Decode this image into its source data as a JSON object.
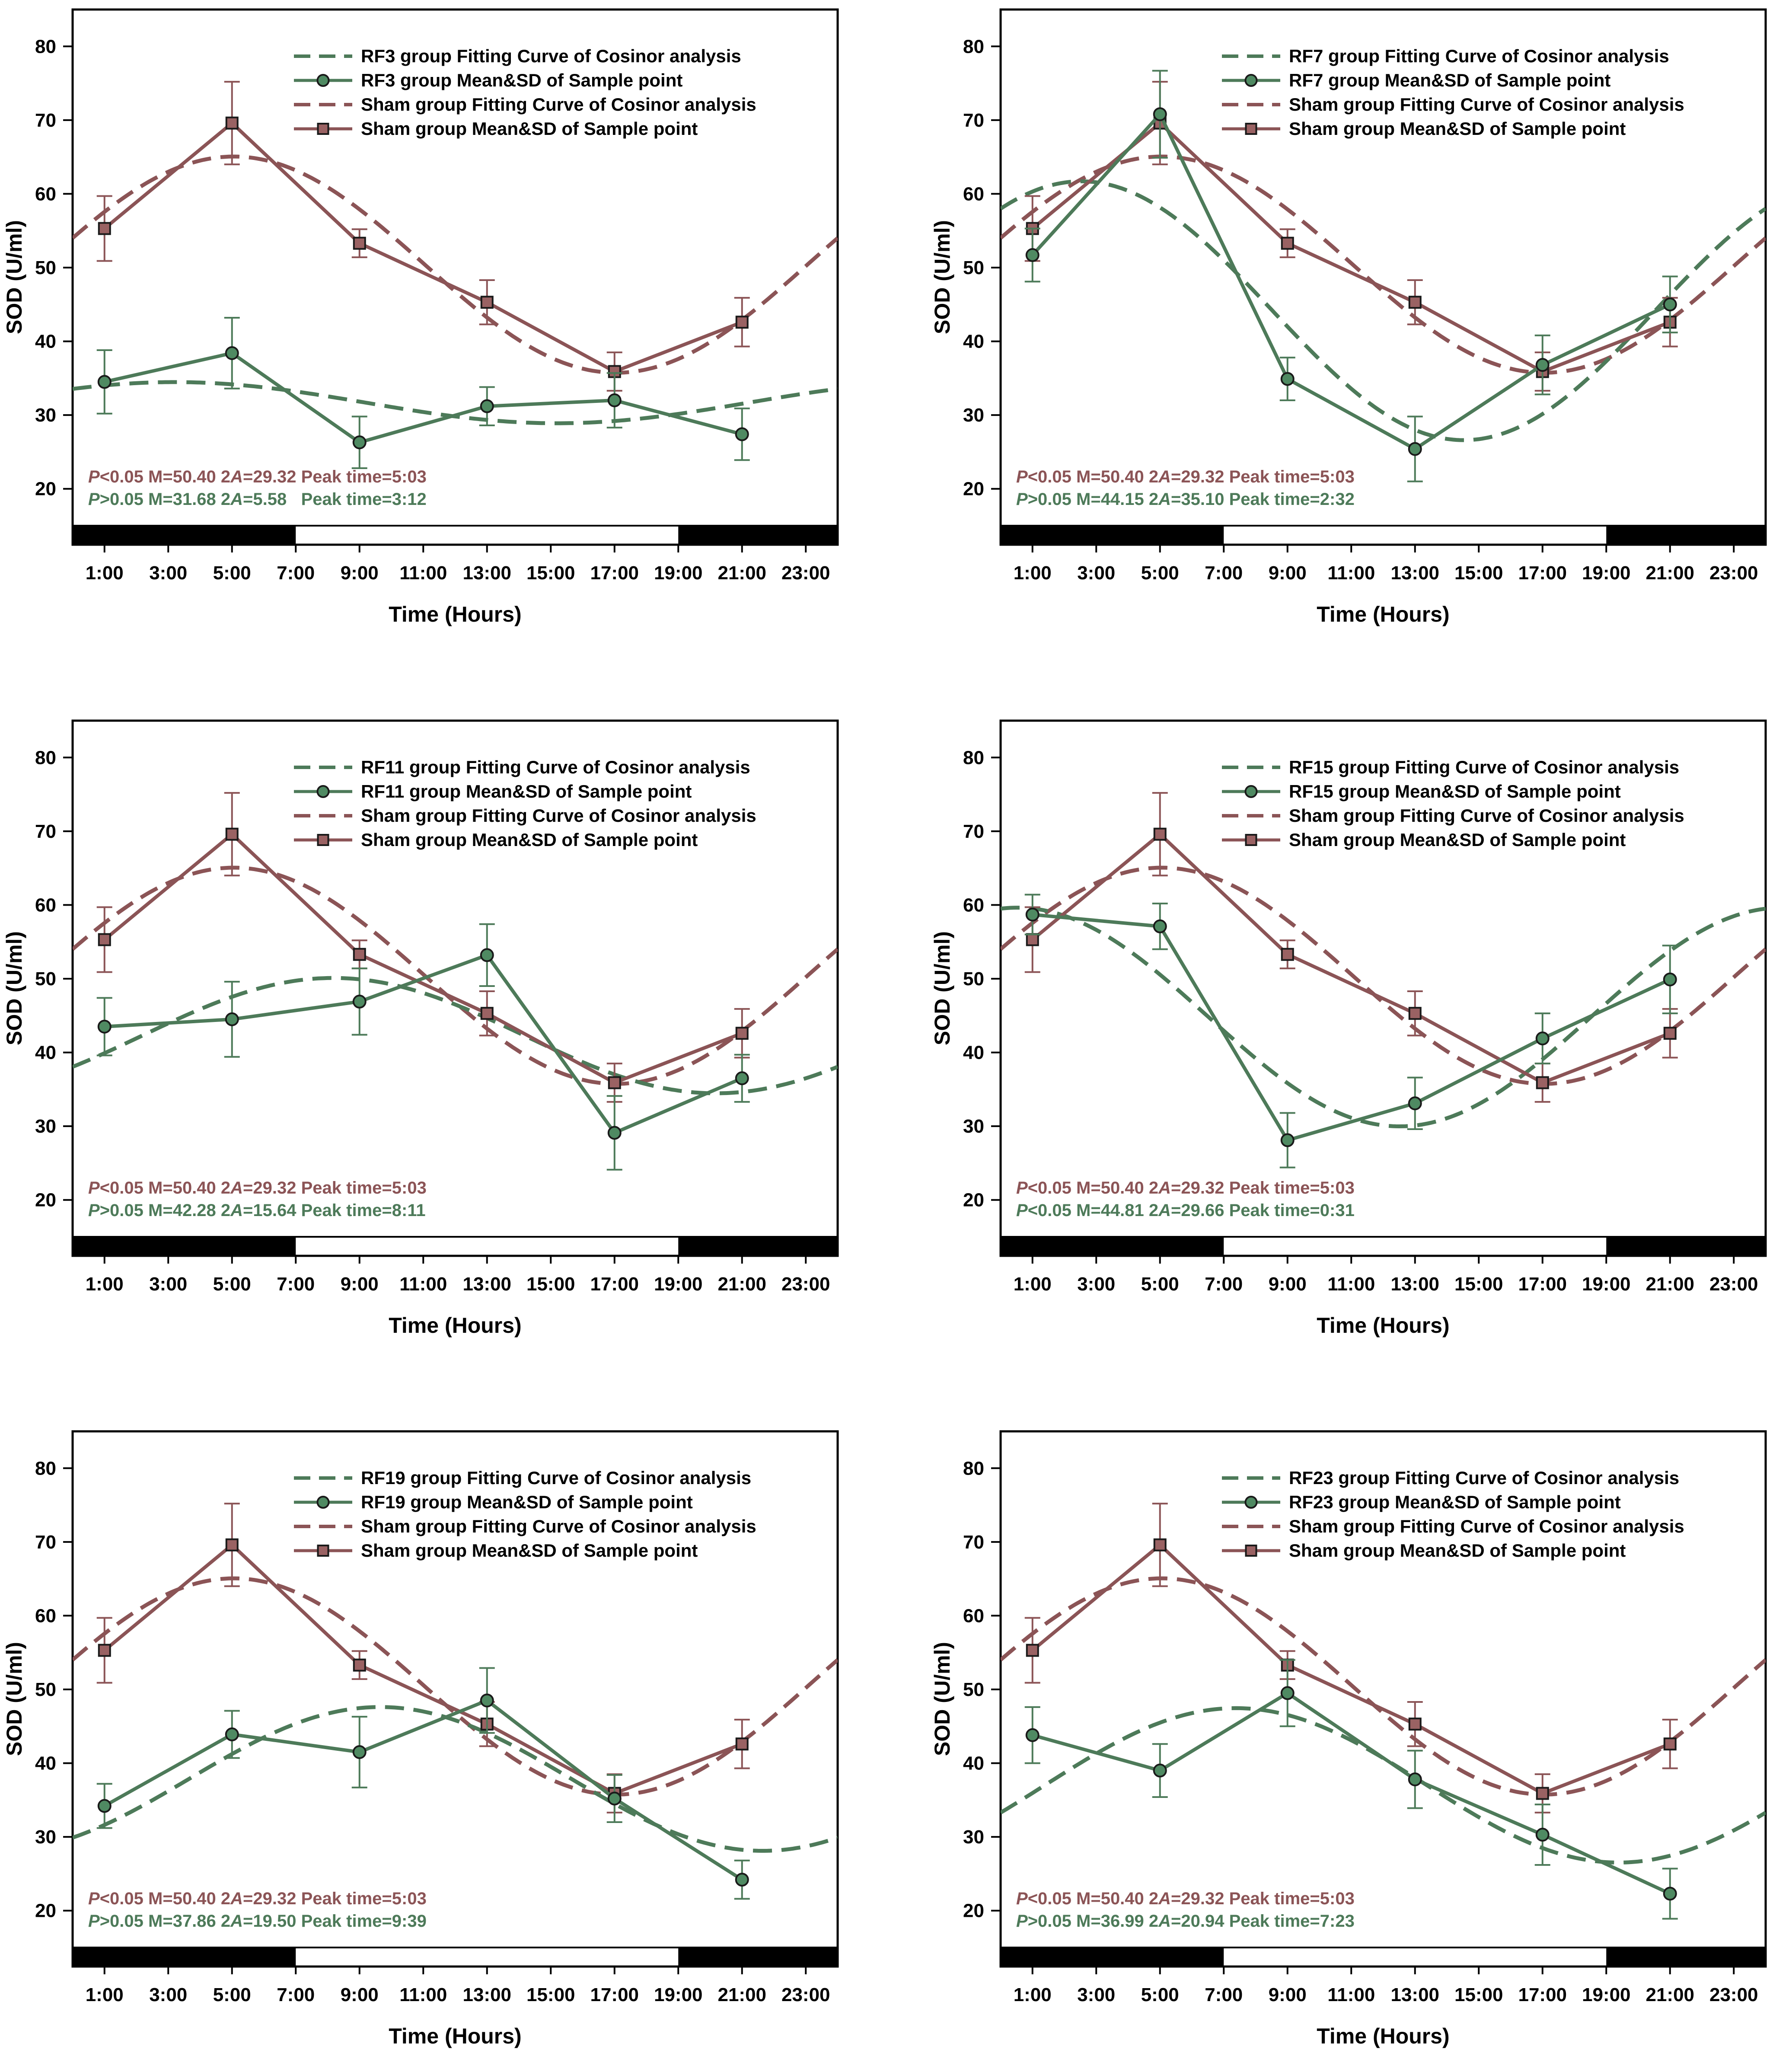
{
  "colors": {
    "rf": "#4d7a59",
    "rf_marker": "#4f8a62",
    "sham": "#8b5456",
    "sham_marker": "#9a6263",
    "axis": "#000000"
  },
  "shared": {
    "xlabel": "Time (Hours)",
    "ylabel": "SOD (U/ml)",
    "x_ticks": [
      "1:00",
      "3:00",
      "5:00",
      "7:00",
      "9:00",
      "11:00",
      "13:00",
      "15:00",
      "17:00",
      "19:00",
      "21:00",
      "23:00"
    ],
    "x_tick_values": [
      1,
      3,
      5,
      7,
      9,
      11,
      13,
      15,
      17,
      19,
      21,
      23
    ],
    "y_ticks": [
      20,
      30,
      40,
      50,
      60,
      70,
      80
    ],
    "xlim": [
      0,
      24
    ],
    "ylim": [
      15,
      85
    ],
    "dark_phases": [
      [
        0,
        7
      ],
      [
        19,
        24
      ]
    ]
  },
  "chart_data": [
    {
      "type": "line",
      "title": "",
      "xlabel": "Time (Hours)",
      "ylabel": "SOD (U/ml)",
      "legend": [
        "RF3 group Fitting Curve of Cosinor analysis",
        "RF3 group Mean&SD of Sample point",
        "Sham group Fitting Curve of Cosinor analysis",
        "Sham group Mean&SD of Sample point"
      ],
      "stats": {
        "sham": {
          "p": "P",
          "p_rest": "<0.05 M=50.40 2",
          "a": "A",
          "a_rest": "=29.32 Peak time=5:03"
        },
        "rf": {
          "p": "P",
          "p_rest": ">0.05 M=31.68 2",
          "a": "A",
          "a_rest": "=5.58   Peak time=3:12"
        }
      },
      "series": [
        {
          "name": "RF3 group Fitting Curve of Cosinor analysis",
          "kind": "fit",
          "group": "rf",
          "mesor": 31.68,
          "amplitude": 2.79,
          "peak": 3.2
        },
        {
          "name": "RF3 group Mean&SD of Sample point",
          "kind": "points",
          "group": "rf",
          "x": [
            1,
            5,
            9,
            13,
            17,
            21
          ],
          "y": [
            34.5,
            38.4,
            26.3,
            31.2,
            32.0,
            27.4
          ],
          "sd": [
            4.3,
            4.8,
            3.5,
            2.6,
            3.7,
            3.5
          ]
        },
        {
          "name": "Sham group Fitting Curve of Cosinor analysis",
          "kind": "fit",
          "group": "sham",
          "mesor": 50.4,
          "amplitude": 14.66,
          "peak": 5.05
        },
        {
          "name": "Sham group Mean&SD of Sample point",
          "kind": "points",
          "group": "sham",
          "x": [
            1,
            5,
            9,
            13,
            17,
            21
          ],
          "y": [
            55.3,
            69.6,
            53.3,
            45.3,
            35.9,
            42.6
          ],
          "sd": [
            4.4,
            5.6,
            1.9,
            3.0,
            2.6,
            3.3
          ]
        }
      ]
    },
    {
      "type": "line",
      "title": "",
      "xlabel": "Time (Hours)",
      "ylabel": "SOD (U/ml)",
      "legend": [
        "RF7 group Fitting Curve of Cosinor analysis",
        "RF7 group Mean&SD of Sample point",
        "Sham group Fitting Curve of Cosinor analysis",
        "Sham group Mean&SD of Sample point"
      ],
      "stats": {
        "sham": {
          "p": "P",
          "p_rest": "<0.05 M=50.40 2",
          "a": "A",
          "a_rest": "=29.32 Peak time=5:03"
        },
        "rf": {
          "p": "P",
          "p_rest": ">0.05 M=44.15 2",
          "a": "A",
          "a_rest": "=35.10 Peak time=2:32"
        }
      },
      "series": [
        {
          "name": "RF7 group Fitting Curve of Cosinor analysis",
          "kind": "fit",
          "group": "rf",
          "mesor": 44.15,
          "amplitude": 17.55,
          "peak": 2.53
        },
        {
          "name": "RF7 group Mean&SD of Sample point",
          "kind": "points",
          "group": "rf",
          "x": [
            1,
            5,
            9,
            13,
            17,
            21
          ],
          "y": [
            51.7,
            70.8,
            34.9,
            25.4,
            36.8,
            45.0
          ],
          "sd": [
            3.6,
            5.9,
            2.9,
            4.4,
            4.0,
            3.8
          ]
        },
        {
          "name": "Sham group Fitting Curve of Cosinor analysis",
          "kind": "fit",
          "group": "sham",
          "mesor": 50.4,
          "amplitude": 14.66,
          "peak": 5.05
        },
        {
          "name": "Sham group Mean&SD of Sample point",
          "kind": "points",
          "group": "sham",
          "x": [
            1,
            5,
            9,
            13,
            17,
            21
          ],
          "y": [
            55.3,
            69.6,
            53.3,
            45.3,
            35.9,
            42.6
          ],
          "sd": [
            4.4,
            5.6,
            1.9,
            3.0,
            2.6,
            3.3
          ]
        }
      ]
    },
    {
      "type": "line",
      "title": "",
      "xlabel": "Time (Hours)",
      "ylabel": "SOD (U/ml)",
      "legend": [
        "RF11 group Fitting Curve of Cosinor analysis",
        "RF11 group Mean&SD of Sample point",
        "Sham group Fitting Curve of Cosinor analysis",
        "Sham group Mean&SD of Sample point"
      ],
      "stats": {
        "sham": {
          "p": "P",
          "p_rest": "<0.05 M=50.40 2",
          "a": "A",
          "a_rest": "=29.32 Peak time=5:03"
        },
        "rf": {
          "p": "P",
          "p_rest": ">0.05 M=42.28 2",
          "a": "A",
          "a_rest": "=15.64 Peak time=8:11"
        }
      },
      "series": [
        {
          "name": "RF11 group Fitting Curve of Cosinor analysis",
          "kind": "fit",
          "group": "rf",
          "mesor": 42.28,
          "amplitude": 7.82,
          "peak": 8.18
        },
        {
          "name": "RF11 group Mean&SD of Sample point",
          "kind": "points",
          "group": "rf",
          "x": [
            1,
            5,
            9,
            13,
            17,
            21
          ],
          "y": [
            43.5,
            44.5,
            46.9,
            53.2,
            29.1,
            36.5
          ],
          "sd": [
            3.9,
            5.1,
            4.5,
            4.2,
            5.0,
            3.2
          ]
        },
        {
          "name": "Sham group Fitting Curve of Cosinor analysis",
          "kind": "fit",
          "group": "sham",
          "mesor": 50.4,
          "amplitude": 14.66,
          "peak": 5.05
        },
        {
          "name": "Sham group Mean&SD of Sample point",
          "kind": "points",
          "group": "sham",
          "x": [
            1,
            5,
            9,
            13,
            17,
            21
          ],
          "y": [
            55.3,
            69.6,
            53.3,
            45.3,
            35.9,
            42.6
          ],
          "sd": [
            4.4,
            5.6,
            1.9,
            3.0,
            2.6,
            3.3
          ]
        }
      ]
    },
    {
      "type": "line",
      "title": "",
      "xlabel": "Time (Hours)",
      "ylabel": "SOD (U/ml)",
      "legend": [
        "RF15 group Fitting Curve of Cosinor analysis",
        "RF15 group Mean&SD of Sample point",
        "Sham group Fitting Curve of Cosinor analysis",
        "Sham group Mean&SD of Sample point"
      ],
      "stats": {
        "sham": {
          "p": "P",
          "p_rest": "<0.05 M=50.40 2",
          "a": "A",
          "a_rest": "=29.32 Peak time=5:03"
        },
        "rf": {
          "p": "P",
          "p_rest": "<0.05 M=44.81 2",
          "a": "A",
          "a_rest": "=29.66 Peak time=0:31"
        }
      },
      "series": [
        {
          "name": "RF15 group Fitting Curve of Cosinor analysis",
          "kind": "fit",
          "group": "rf",
          "mesor": 44.81,
          "amplitude": 14.83,
          "peak": 0.52
        },
        {
          "name": "RF15 group Mean&SD of Sample point",
          "kind": "points",
          "group": "rf",
          "x": [
            1,
            5,
            9,
            13,
            17,
            21
          ],
          "y": [
            58.7,
            57.1,
            28.1,
            33.1,
            41.9,
            49.9
          ],
          "sd": [
            2.7,
            3.1,
            3.7,
            3.5,
            3.4,
            4.6
          ]
        },
        {
          "name": "Sham group Fitting Curve of Cosinor analysis",
          "kind": "fit",
          "group": "sham",
          "mesor": 50.4,
          "amplitude": 14.66,
          "peak": 5.05
        },
        {
          "name": "Sham group Mean&SD of Sample point",
          "kind": "points",
          "group": "sham",
          "x": [
            1,
            5,
            9,
            13,
            17,
            21
          ],
          "y": [
            55.3,
            69.6,
            53.3,
            45.3,
            35.9,
            42.6
          ],
          "sd": [
            4.4,
            5.6,
            1.9,
            3.0,
            2.6,
            3.3
          ]
        }
      ]
    },
    {
      "type": "line",
      "title": "",
      "xlabel": "Time (Hours)",
      "ylabel": "SOD (U/ml)",
      "legend": [
        "RF19 group Fitting Curve of Cosinor analysis",
        "RF19 group Mean&SD of Sample point",
        "Sham group Fitting Curve of Cosinor analysis",
        "Sham group Mean&SD of Sample point"
      ],
      "stats": {
        "sham": {
          "p": "P",
          "p_rest": "<0.05 M=50.40 2",
          "a": "A",
          "a_rest": "=29.32 Peak time=5:03"
        },
        "rf": {
          "p": "P",
          "p_rest": ">0.05 M=37.86 2",
          "a": "A",
          "a_rest": "=19.50 Peak time=9:39"
        }
      },
      "series": [
        {
          "name": "RF19 group Fitting Curve of Cosinor analysis",
          "kind": "fit",
          "group": "rf",
          "mesor": 37.86,
          "amplitude": 9.75,
          "peak": 9.65
        },
        {
          "name": "RF19 group Mean&SD of Sample point",
          "kind": "points",
          "group": "rf",
          "x": [
            1,
            5,
            9,
            13,
            17,
            21
          ],
          "y": [
            34.2,
            43.9,
            41.5,
            48.5,
            35.2,
            24.2
          ],
          "sd": [
            3.0,
            3.2,
            4.8,
            4.4,
            3.2,
            2.6
          ]
        },
        {
          "name": "Sham group Fitting Curve of Cosinor analysis",
          "kind": "fit",
          "group": "sham",
          "mesor": 50.4,
          "amplitude": 14.66,
          "peak": 5.05
        },
        {
          "name": "Sham group Mean&SD of Sample point",
          "kind": "points",
          "group": "sham",
          "x": [
            1,
            5,
            9,
            13,
            17,
            21
          ],
          "y": [
            55.3,
            69.6,
            53.3,
            45.3,
            35.9,
            42.6
          ],
          "sd": [
            4.4,
            5.6,
            1.9,
            3.0,
            2.6,
            3.3
          ]
        }
      ]
    },
    {
      "type": "line",
      "title": "",
      "xlabel": "Time (Hours)",
      "ylabel": "SOD (U/ml)",
      "legend": [
        "RF23 group Fitting Curve of Cosinor analysis",
        "RF23 group Mean&SD of Sample point",
        "Sham group Fitting Curve of Cosinor analysis",
        "Sham group Mean&SD of Sample point"
      ],
      "stats": {
        "sham": {
          "p": "P",
          "p_rest": "<0.05 M=50.40 2",
          "a": "A",
          "a_rest": "=29.32 Peak time=5:03"
        },
        "rf": {
          "p": "P",
          "p_rest": ">0.05 M=36.99 2",
          "a": "A",
          "a_rest": "=20.94 Peak time=7:23"
        }
      },
      "series": [
        {
          "name": "RF23 group Fitting Curve of Cosinor analysis",
          "kind": "fit",
          "group": "rf",
          "mesor": 36.99,
          "amplitude": 10.47,
          "peak": 7.38
        },
        {
          "name": "RF23 group Mean&SD of Sample point",
          "kind": "points",
          "group": "rf",
          "x": [
            1,
            5,
            9,
            13,
            17,
            21
          ],
          "y": [
            43.8,
            39.0,
            49.5,
            37.8,
            30.3,
            22.3
          ],
          "sd": [
            3.8,
            3.6,
            4.5,
            3.9,
            4.1,
            3.4
          ]
        },
        {
          "name": "Sham group Fitting Curve of Cosinor analysis",
          "kind": "fit",
          "group": "sham",
          "mesor": 50.4,
          "amplitude": 14.66,
          "peak": 5.05
        },
        {
          "name": "Sham group Mean&SD of Sample point",
          "kind": "points",
          "group": "sham",
          "x": [
            1,
            5,
            9,
            13,
            17,
            21
          ],
          "y": [
            55.3,
            69.6,
            53.3,
            45.3,
            35.9,
            42.6
          ],
          "sd": [
            4.4,
            5.6,
            1.9,
            3.0,
            2.6,
            3.3
          ]
        }
      ]
    }
  ]
}
